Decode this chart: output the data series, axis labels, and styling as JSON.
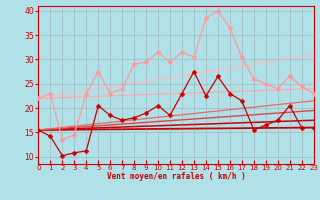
{
  "xlabel": "Vent moyen/en rafales ( km/h )",
  "xlim": [
    0,
    23
  ],
  "ylim": [
    8.5,
    41
  ],
  "yticks": [
    10,
    15,
    20,
    25,
    30,
    35,
    40
  ],
  "xticks": [
    0,
    1,
    2,
    3,
    4,
    5,
    6,
    7,
    8,
    9,
    10,
    11,
    12,
    13,
    14,
    15,
    16,
    17,
    18,
    19,
    20,
    21,
    22,
    23
  ],
  "bg_color": "#b0e0e8",
  "grid_color": "#909090",
  "trend_lines": [
    {
      "x": [
        0,
        23
      ],
      "y": [
        15.5,
        16.0
      ],
      "color": "#cc0000",
      "lw": 1.3
    },
    {
      "x": [
        0,
        23
      ],
      "y": [
        15.5,
        17.5
      ],
      "color": "#cc0000",
      "lw": 1.1
    },
    {
      "x": [
        0,
        23
      ],
      "y": [
        15.5,
        19.5
      ],
      "color": "#dd4444",
      "lw": 1.0
    },
    {
      "x": [
        0,
        23
      ],
      "y": [
        15.5,
        21.5
      ],
      "color": "#ee6666",
      "lw": 0.9
    },
    {
      "x": [
        0,
        23
      ],
      "y": [
        22.0,
        24.0
      ],
      "color": "#ffaaaa",
      "lw": 0.9
    },
    {
      "x": [
        0,
        23
      ],
      "y": [
        22.0,
        31.0
      ],
      "color": "#ffbbbb",
      "lw": 0.9
    }
  ],
  "data_lines": [
    {
      "x": [
        0,
        1,
        2,
        3,
        4,
        5,
        6,
        7,
        8,
        9,
        10,
        11,
        12,
        13,
        14,
        15,
        16,
        17,
        18,
        19,
        20,
        21,
        22,
        23
      ],
      "y": [
        15.5,
        14.2,
        10.2,
        10.8,
        11.2,
        20.5,
        18.5,
        17.5,
        18.0,
        19.0,
        20.5,
        18.5,
        23.0,
        27.5,
        22.5,
        26.5,
        23.0,
        21.5,
        15.5,
        16.5,
        17.5,
        20.5,
        16.0,
        16.0
      ],
      "color": "#cc0000",
      "lw": 0.9,
      "marker": "D",
      "ms": 2.5
    },
    {
      "x": [
        0,
        1,
        2,
        3,
        4,
        5,
        6,
        7,
        8,
        9,
        10,
        11,
        12,
        13,
        14,
        15,
        16,
        17,
        18,
        19,
        20,
        21,
        22,
        23
      ],
      "y": [
        22.0,
        23.0,
        13.5,
        14.5,
        23.0,
        27.5,
        23.0,
        24.0,
        29.0,
        29.5,
        31.5,
        29.5,
        31.5,
        30.5,
        38.5,
        40.0,
        36.5,
        30.5,
        26.0,
        25.0,
        24.0,
        26.5,
        24.5,
        23.0
      ],
      "color": "#ff9999",
      "lw": 0.9,
      "marker": "D",
      "ms": 2.5
    }
  ]
}
